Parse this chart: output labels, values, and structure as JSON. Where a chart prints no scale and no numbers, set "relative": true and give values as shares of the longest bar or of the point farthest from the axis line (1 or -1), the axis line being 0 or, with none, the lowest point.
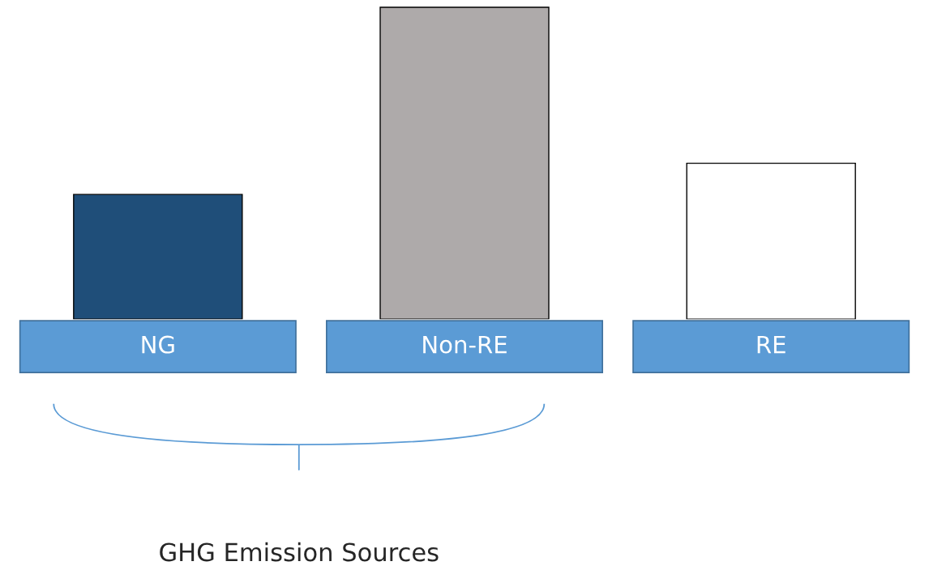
{
  "chart_data": {
    "type": "bar",
    "relative": true,
    "categories": [
      "NG",
      "Non-RE",
      "RE"
    ],
    "values": [
      0.4,
      1,
      0.5
    ],
    "colors": [
      "#1f4e79",
      "#aeaaaa",
      "#ffffff"
    ],
    "annotations": [
      "GHG Emission Sources"
    ]
  }
}
